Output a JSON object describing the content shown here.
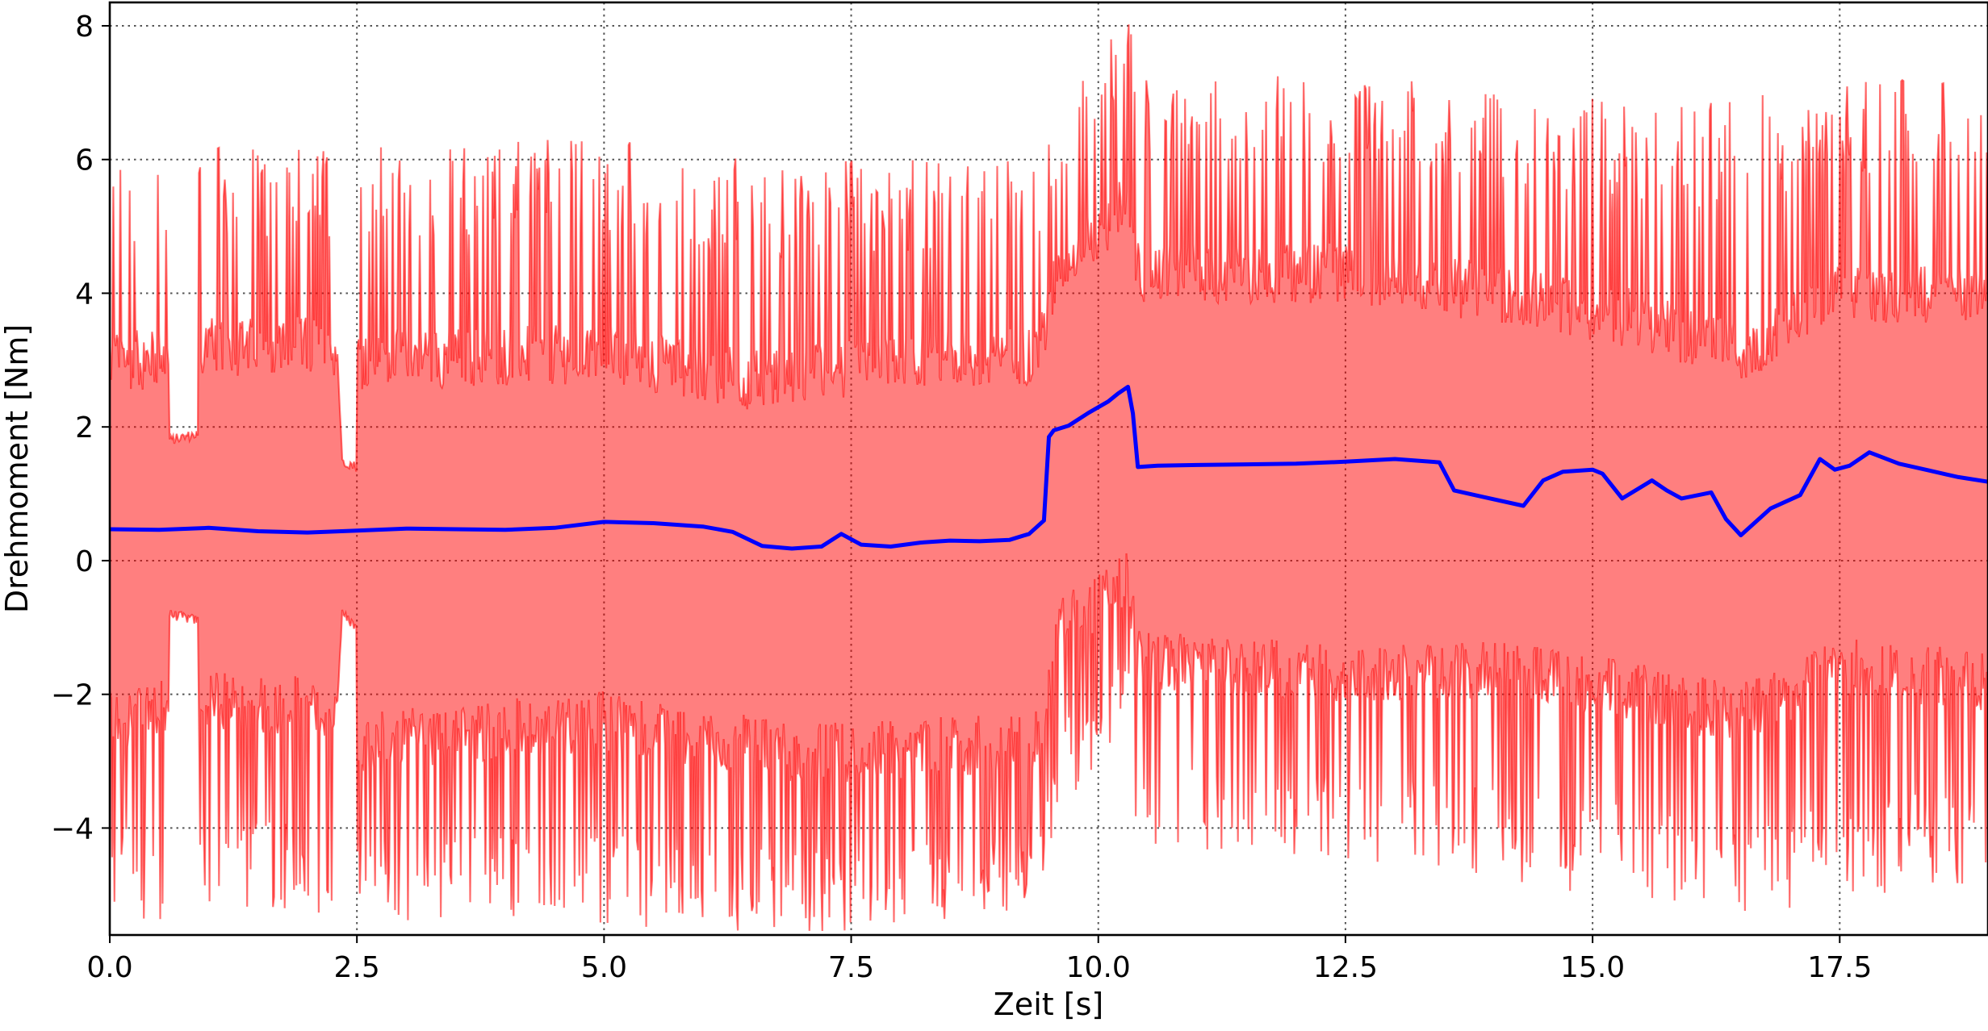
{
  "chart_data": {
    "type": "line",
    "title": "",
    "xlabel": "Zeit [s]",
    "ylabel": "Drehmoment [Nm]",
    "xlim": [
      0,
      19.0
    ],
    "ylim": [
      -5.6,
      8.35
    ],
    "xticks": [
      0.0,
      2.5,
      5.0,
      7.5,
      10.0,
      12.5,
      15.0,
      17.5
    ],
    "xtick_labels": [
      "0.0",
      "2.5",
      "5.0",
      "7.5",
      "10.0",
      "12.5",
      "15.0",
      "17.5"
    ],
    "yticks": [
      -4,
      -2,
      0,
      2,
      4,
      6,
      8
    ],
    "ytick_labels": [
      "−4",
      "−2",
      "0",
      "2",
      "4",
      "6",
      "8"
    ],
    "grid": true,
    "legend": false,
    "band": {
      "description_hidden": true,
      "color": "#ff0000",
      "fill_opacity": 0.5,
      "upper_peak": [
        [
          0.0,
          6.2
        ],
        [
          0.6,
          6.2
        ],
        [
          0.6,
          1.8
        ],
        [
          0.9,
          1.9
        ],
        [
          0.9,
          6.2
        ],
        [
          2.3,
          6.2
        ],
        [
          2.35,
          1.5
        ],
        [
          2.5,
          1.4
        ],
        [
          2.5,
          6.3
        ],
        [
          5.5,
          6.3
        ],
        [
          6.5,
          6.0
        ],
        [
          9.4,
          6.0
        ],
        [
          9.7,
          7.0
        ],
        [
          10.0,
          7.5
        ],
        [
          10.3,
          8.3
        ],
        [
          10.4,
          7.2
        ],
        [
          13.0,
          7.3
        ],
        [
          14.5,
          7.0
        ],
        [
          16.0,
          6.8
        ],
        [
          17.5,
          7.2
        ],
        [
          19.0,
          7.3
        ]
      ],
      "upper_base": [
        [
          0.0,
          3.0
        ],
        [
          0.6,
          3.0
        ],
        [
          0.6,
          1.8
        ],
        [
          0.9,
          1.9
        ],
        [
          0.9,
          3.2
        ],
        [
          2.3,
          3.2
        ],
        [
          2.35,
          1.5
        ],
        [
          2.5,
          1.4
        ],
        [
          2.5,
          3.0
        ],
        [
          5.0,
          3.1
        ],
        [
          6.5,
          2.7
        ],
        [
          9.4,
          3.1
        ],
        [
          9.6,
          4.4
        ],
        [
          10.0,
          4.8
        ],
        [
          10.3,
          5.5
        ],
        [
          10.4,
          4.3
        ],
        [
          12.5,
          4.3
        ],
        [
          14.0,
          4.0
        ],
        [
          15.5,
          3.6
        ],
        [
          16.5,
          3.1
        ],
        [
          17.5,
          4.0
        ],
        [
          19.0,
          4.0
        ]
      ],
      "lower_base": [
        [
          0.0,
          -2.4
        ],
        [
          0.6,
          -2.2
        ],
        [
          0.6,
          -0.8
        ],
        [
          0.9,
          -0.9
        ],
        [
          0.9,
          -2.1
        ],
        [
          2.3,
          -2.2
        ],
        [
          2.35,
          -0.8
        ],
        [
          2.5,
          -1.0
        ],
        [
          2.5,
          -2.7
        ],
        [
          5.0,
          -2.4
        ],
        [
          7.0,
          -2.9
        ],
        [
          9.4,
          -2.7
        ],
        [
          9.6,
          -1.0
        ],
        [
          10.0,
          -0.6
        ],
        [
          10.3,
          -0.3
        ],
        [
          10.4,
          -1.5
        ],
        [
          12.5,
          -1.7
        ],
        [
          14.0,
          -1.6
        ],
        [
          15.5,
          -2.0
        ],
        [
          16.5,
          -2.3
        ],
        [
          17.5,
          -1.6
        ],
        [
          19.0,
          -1.8
        ]
      ],
      "lower_peak": [
        [
          0.0,
          -5.3
        ],
        [
          0.6,
          -5.4
        ],
        [
          0.6,
          -0.8
        ],
        [
          0.9,
          -0.9
        ],
        [
          0.9,
          -5.4
        ],
        [
          2.3,
          -5.3
        ],
        [
          2.35,
          -0.8
        ],
        [
          2.5,
          -1.0
        ],
        [
          2.5,
          -5.4
        ],
        [
          5.5,
          -5.5
        ],
        [
          7.5,
          -5.6
        ],
        [
          9.4,
          -5.2
        ],
        [
          9.6,
          -3.6
        ],
        [
          10.0,
          -3.3
        ],
        [
          10.3,
          -2.2
        ],
        [
          10.4,
          -4.3
        ],
        [
          13.5,
          -4.6
        ],
        [
          15.0,
          -5.0
        ],
        [
          16.5,
          -5.3
        ],
        [
          19.0,
          -4.8
        ]
      ]
    },
    "series": [
      {
        "color": "#0000ff",
        "x": [
          0.0,
          0.5,
          1.0,
          1.5,
          2.0,
          2.5,
          3.0,
          3.5,
          4.0,
          4.5,
          5.0,
          5.5,
          6.0,
          6.3,
          6.6,
          6.9,
          7.2,
          7.4,
          7.6,
          7.9,
          8.2,
          8.5,
          8.8,
          9.1,
          9.3,
          9.45,
          9.5,
          9.55,
          9.7,
          9.9,
          10.1,
          10.2,
          10.3,
          10.35,
          10.4,
          10.6,
          11.0,
          11.5,
          12.0,
          12.5,
          13.0,
          13.45,
          13.6,
          13.9,
          14.3,
          14.5,
          14.7,
          15.0,
          15.1,
          15.3,
          15.6,
          15.75,
          15.9,
          16.2,
          16.35,
          16.5,
          16.8,
          17.1,
          17.3,
          17.45,
          17.6,
          17.8,
          18.1,
          18.4,
          18.7,
          19.0
        ],
        "y": [
          0.47,
          0.46,
          0.49,
          0.44,
          0.42,
          0.45,
          0.48,
          0.47,
          0.46,
          0.49,
          0.58,
          0.56,
          0.51,
          0.43,
          0.22,
          0.18,
          0.21,
          0.4,
          0.24,
          0.21,
          0.27,
          0.3,
          0.29,
          0.31,
          0.4,
          0.6,
          1.85,
          1.95,
          2.02,
          2.21,
          2.38,
          2.5,
          2.6,
          2.2,
          1.4,
          1.42,
          1.43,
          1.44,
          1.45,
          1.48,
          1.52,
          1.47,
          1.05,
          0.95,
          0.82,
          1.2,
          1.33,
          1.36,
          1.3,
          0.93,
          1.2,
          1.05,
          0.93,
          1.02,
          0.62,
          0.38,
          0.78,
          0.98,
          1.52,
          1.36,
          1.42,
          1.62,
          1.45,
          1.35,
          1.25,
          1.18
        ]
      }
    ]
  }
}
